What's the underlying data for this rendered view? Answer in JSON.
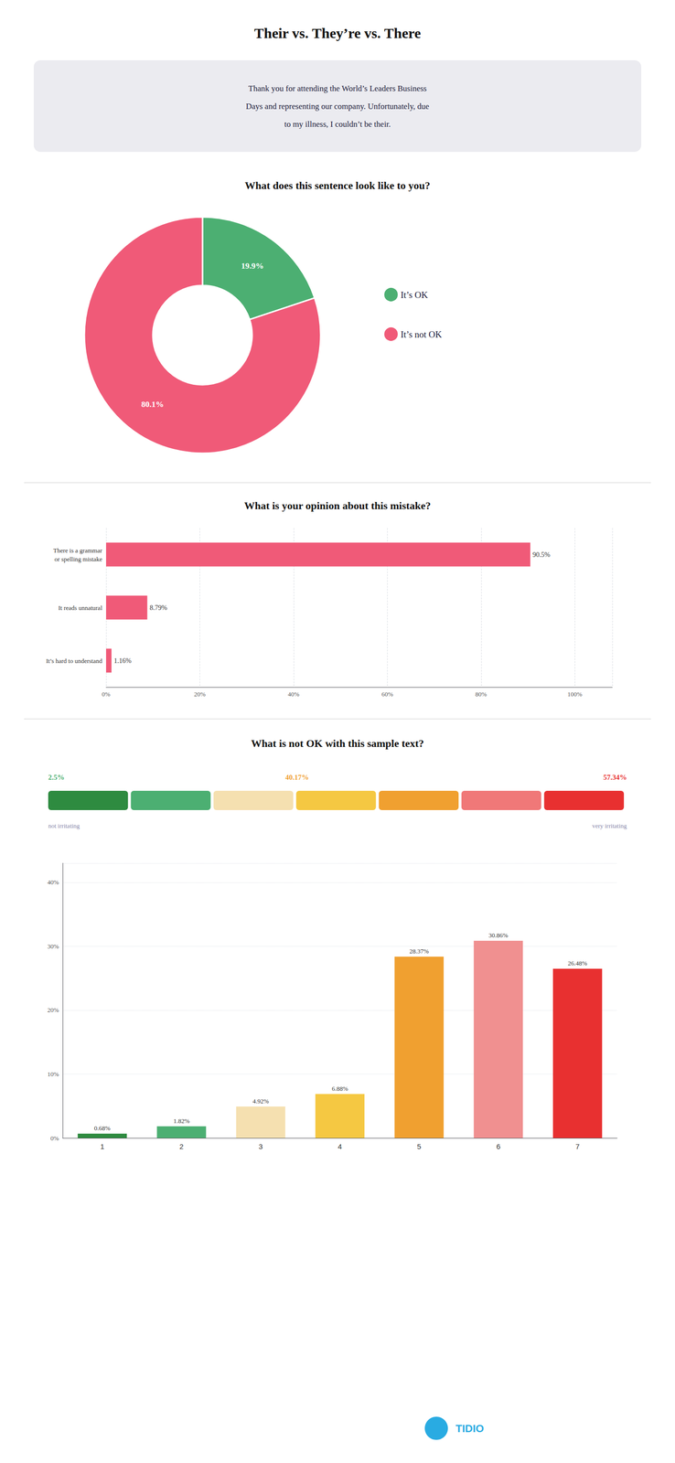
{
  "title": "Their vs. They’re vs. There",
  "subtitle": "Thank you for attending the World’s Leaders Business\nDays and representing our company. Unfortunately, due\nto my illness, I couldn’t be their.",
  "annotations": [
    {
      "text": "TIDIO",
      "color": "#29abe2"
    }
  ],
  "chart_data": [
    {
      "type": "pie",
      "title": "What does this sentence look like to you?",
      "categories": [
        "It’s OK",
        "It’s not OK"
      ],
      "values": [
        19.9,
        80.1
      ],
      "value_labels": [
        "19.9%",
        "80.1%"
      ],
      "colors": [
        "#4caf72",
        "#f05a78"
      ],
      "legend": "right",
      "data_labels": true
    },
    {
      "type": "bar",
      "title": "What is your opinion about this mistake?",
      "orientation": "horizontal",
      "categories": [
        "There is a grammar\nor spelling mistake",
        "It reads unnatural",
        "It’s hard to understand"
      ],
      "values": [
        90.5,
        8.79,
        1.16
      ],
      "value_labels": [
        "90.5%",
        "8.79%",
        "1.16%"
      ],
      "color": "#f05a78",
      "xlim": [
        0,
        108
      ],
      "xticks": [
        {
          "value": 0,
          "label": "0%"
        },
        {
          "value": 20,
          "label": "20%"
        },
        {
          "value": 40,
          "label": "40%"
        },
        {
          "value": 60,
          "label": "60%"
        },
        {
          "value": 80,
          "label": "80%"
        },
        {
          "value": 100,
          "label": "100%"
        }
      ],
      "grid": true,
      "data_labels": true
    },
    {
      "type": "bar",
      "title": "What is not OK with this sample text?",
      "categories": [
        "1",
        "2",
        "3",
        "4",
        "5",
        "6",
        "7"
      ],
      "values": [
        0.68,
        1.82,
        4.92,
        6.88,
        28.37,
        30.86,
        26.48
      ],
      "value_labels": [
        "0.68%",
        "1.82%",
        "4.92%",
        "6.88%",
        "28.37%",
        "30.86%",
        "26.48%"
      ],
      "colors": [
        "#2e8b40",
        "#4caf72",
        "#f5e0b0",
        "#f5c842",
        "#f0a030",
        "#f09090",
        "#e83030"
      ],
      "ylim": [
        0,
        43
      ],
      "yticks": [
        {
          "value": 0,
          "label": "0%"
        },
        {
          "value": 10,
          "label": "10%"
        },
        {
          "value": 20,
          "label": "20%"
        },
        {
          "value": 30,
          "label": "30%"
        },
        {
          "value": 40,
          "label": "40%"
        }
      ],
      "grid": true,
      "data_labels": true,
      "annotations": [
        {
          "text": "2.5%",
          "color": "#4caf72"
        },
        {
          "text": "40.17%",
          "color": "#f0a030"
        },
        {
          "text": "57.34%",
          "color": "#e83030"
        },
        {
          "text": "not irritating",
          "color": "#8888aa"
        },
        {
          "text": "very irritating",
          "color": "#8888aa"
        }
      ],
      "scale_colors": [
        "#2e8b40",
        "#4caf72",
        "#f5e0b0",
        "#f5c842",
        "#f0a030",
        "#f07878",
        "#e83030"
      ]
    }
  ]
}
